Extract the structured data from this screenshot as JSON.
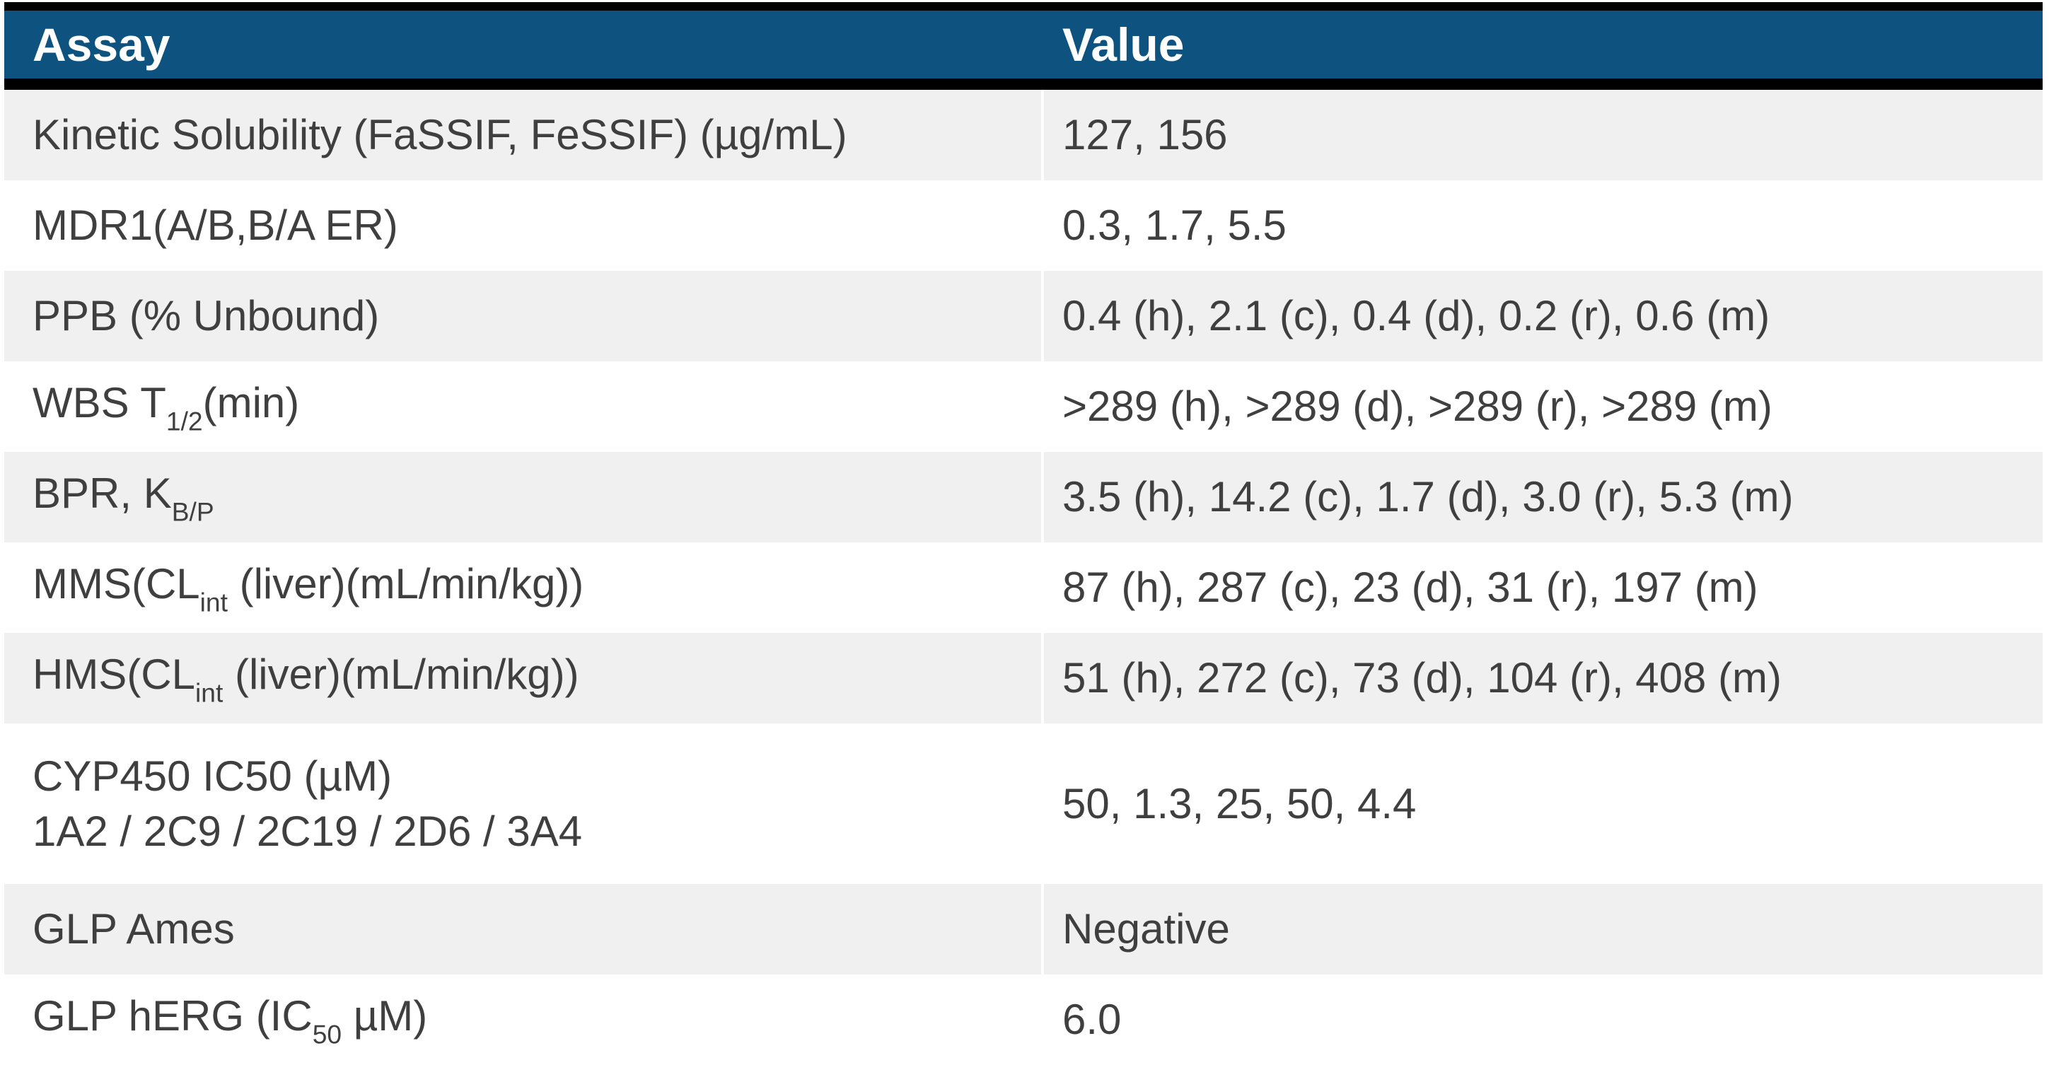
{
  "colors": {
    "header_bg": "#0E5280",
    "header_text": "#FFFFFF",
    "row_alt_bg": "#F0F0F0",
    "row_bg": "#FFFFFF",
    "body_text": "#3F3F3F",
    "border_black": "#000000",
    "divider_white": "#FFFFFF"
  },
  "table": {
    "columns": [
      {
        "id": "assay",
        "label": "Assay"
      },
      {
        "id": "value",
        "label": "Value"
      }
    ],
    "rows": [
      {
        "assay": [
          [
            {
              "t": "Kinetic Solubility (FaSSIF, FeSSIF) (µg/mL)"
            }
          ]
        ],
        "value": "127, 156"
      },
      {
        "assay": [
          [
            {
              "t": "MDR1(A/B,B/A ER)"
            }
          ]
        ],
        "value": "0.3, 1.7, 5.5"
      },
      {
        "assay": [
          [
            {
              "t": "PPB (% Unbound)"
            }
          ]
        ],
        "value": "0.4 (h), 2.1 (c), 0.4 (d), 0.2 (r), 0.6 (m)"
      },
      {
        "assay": [
          [
            {
              "t": "WBS T"
            },
            {
              "t": "1/2",
              "sub": true
            },
            {
              "t": "(min)"
            }
          ]
        ],
        "value": ">289 (h), >289 (d), >289 (r), >289 (m)"
      },
      {
        "assay": [
          [
            {
              "t": "BPR, K"
            },
            {
              "t": "B/P",
              "sub": true
            }
          ]
        ],
        "value": "3.5 (h), 14.2 (c), 1.7 (d), 3.0 (r), 5.3 (m)"
      },
      {
        "assay": [
          [
            {
              "t": "MMS(CL"
            },
            {
              "t": "int",
              "sub": true
            },
            {
              "t": " (liver)(mL/min/kg))"
            }
          ]
        ],
        "value": "87 (h), 287 (c), 23 (d), 31 (r), 197 (m)"
      },
      {
        "assay": [
          [
            {
              "t": "HMS(CL"
            },
            {
              "t": "int",
              "sub": true
            },
            {
              "t": " (liver)(mL/min/kg))"
            }
          ]
        ],
        "value": "51 (h), 272 (c), 73 (d), 104 (r), 408 (m)"
      },
      {
        "assay": [
          [
            {
              "t": "CYP450 IC50 (µM)"
            }
          ],
          [
            {
              "t": "1A2 / 2C9 / 2C19 / 2D6 / 3A4"
            }
          ]
        ],
        "value": "50, 1.3, 25, 50, 4.4",
        "tall": true
      },
      {
        "assay": [
          [
            {
              "t": "GLP Ames"
            }
          ]
        ],
        "value": "Negative"
      },
      {
        "assay": [
          [
            {
              "t": "GLP hERG (IC"
            },
            {
              "t": "50",
              "sub": true
            },
            {
              "t": " µM)"
            }
          ]
        ],
        "value": "6.0"
      }
    ]
  },
  "chart_data": {
    "type": "table",
    "columns": [
      "Assay",
      "Value"
    ],
    "rows": [
      [
        "Kinetic Solubility (FaSSIF, FeSSIF) (µg/mL)",
        "127, 156"
      ],
      [
        "MDR1(A/B,B/A ER)",
        "0.3, 1.7, 5.5"
      ],
      [
        "PPB (% Unbound)",
        "0.4 (h), 2.1 (c), 0.4 (d), 0.2 (r), 0.6 (m)"
      ],
      [
        "WBS T1/2(min)",
        ">289 (h), >289 (d), >289 (r), >289 (m)"
      ],
      [
        "BPR, KB/P",
        "3.5 (h), 14.2 (c), 1.7 (d), 3.0 (r), 5.3 (m)"
      ],
      [
        "MMS(CLint (liver)(mL/min/kg))",
        "87 (h), 287 (c), 23 (d), 31 (r), 197 (m)"
      ],
      [
        "HMS(CLint (liver)(mL/min/kg))",
        "51 (h), 272 (c), 73 (d), 104 (r), 408 (m)"
      ],
      [
        "CYP450 IC50 (µM) 1A2 / 2C9 / 2C19 / 2D6 / 3A4",
        "50, 1.3, 25, 50, 4.4"
      ],
      [
        "GLP Ames",
        "Negative"
      ],
      [
        "GLP hERG (IC50 µM)",
        "6.0"
      ]
    ]
  }
}
